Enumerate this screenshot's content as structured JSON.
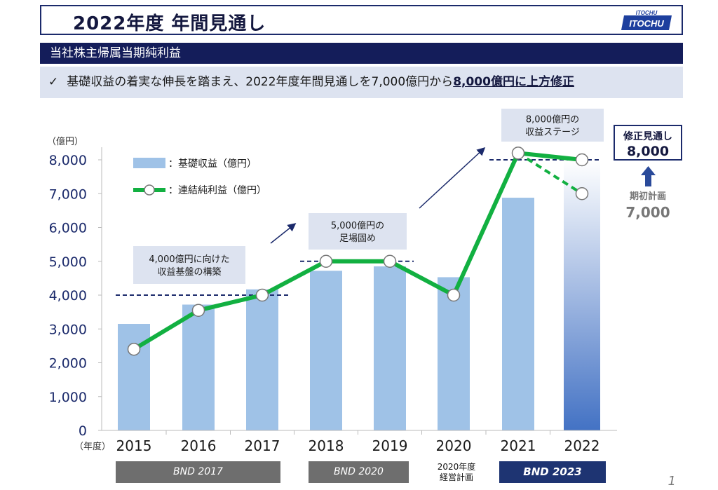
{
  "header": {
    "title": "2022年度 年間見通し",
    "logo_text": "ITOCHU"
  },
  "section": {
    "title": "当社株主帰属当期純利益"
  },
  "summary": {
    "check": "✓",
    "text": "基礎収益の着実な伸長を踏まえ、2022年度年間見通しを7,000億円から",
    "emphasis": "8,000億円に上方修正"
  },
  "chart_data": {
    "type": "bar",
    "categories": [
      "2015",
      "2016",
      "2017",
      "2018",
      "2019",
      "2020",
      "2021",
      "2022"
    ],
    "xlabel": "（年度）",
    "ylabel": "（億円）",
    "ylim": [
      0,
      8000
    ],
    "yticks": [
      "0",
      "1,000",
      "2,000",
      "3,000",
      "4,000",
      "5,000",
      "6,000",
      "7,000",
      "8,000"
    ],
    "grid": false,
    "legend_placement": "top-left",
    "series": [
      {
        "name": "：基礎収益（億円）",
        "type": "bar",
        "values": [
          3150,
          3720,
          4170,
          4720,
          4850,
          4530,
          6880,
          8000
        ],
        "color": "#9fc2e7",
        "last_bar_color": "#4372c4"
      },
      {
        "name": "：連結純利益（億円）",
        "type": "line",
        "values": [
          2400,
          3550,
          4000,
          5000,
          5000,
          4000,
          8200,
          8000
        ],
        "color": "#12b041"
      }
    ],
    "dashed_projection": {
      "from_year": "2021",
      "from_value": 8200,
      "to_year": "2022",
      "to_value": 7000
    },
    "reference_lines": [
      {
        "value": 4000,
        "from": "2015",
        "to": "2017"
      },
      {
        "value": 5000,
        "from": "2018",
        "to": "2019"
      },
      {
        "value": 8000,
        "from": "2021",
        "to": "2022"
      }
    ],
    "annotations": [
      {
        "line1": "4,000億円に向けた",
        "line2": "収益基盤の構築"
      },
      {
        "line1": "5,000億円の",
        "line2": "足場固め"
      },
      {
        "line1": "8,000億円の",
        "line2": "収益ステージ"
      }
    ],
    "revised": {
      "label": "修正見通し",
      "value": "8,000"
    },
    "initial": {
      "label": "期初計画",
      "value": "7,000"
    }
  },
  "periods": {
    "bnd2017": "BND 2017",
    "bnd2020": "BND 2020",
    "plan_line1": "2020年度",
    "plan_line2": "経営計画",
    "bnd2023": "BND 2023"
  },
  "page_number": "1",
  "colors": {
    "navy": "#141d5a",
    "bar": "#9fc2e7",
    "line": "#12b041",
    "gray_band": "#6e6e6e"
  }
}
